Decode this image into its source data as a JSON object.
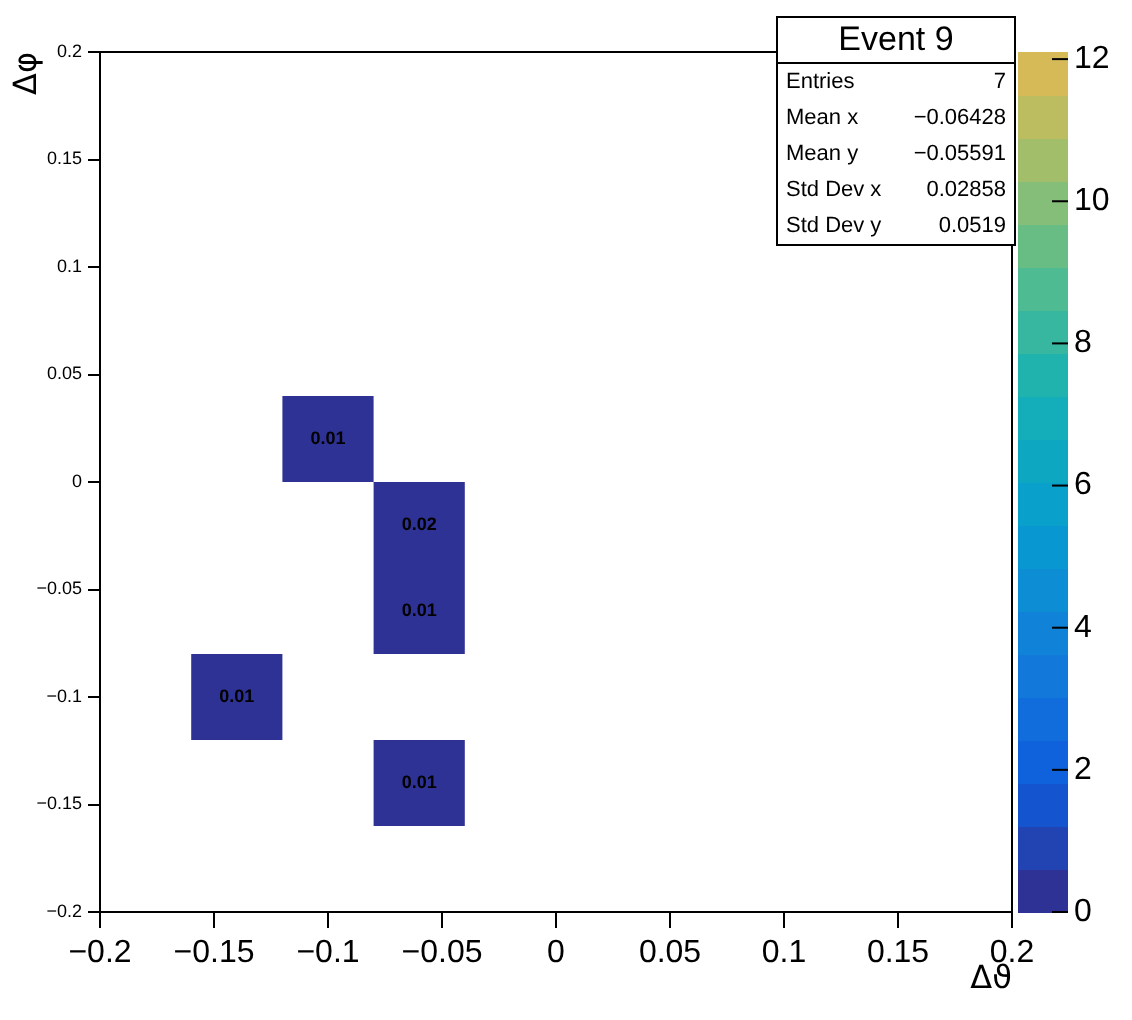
{
  "chart_data": {
    "type": "heatmap",
    "xlabel": "Δϑ",
    "ylabel": "Δφ",
    "x": [
      -0.14,
      -0.1,
      -0.06
    ],
    "y": [
      0.02,
      -0.02,
      -0.06,
      -0.1,
      -0.14
    ],
    "xlim": [
      -0.2,
      0.2
    ],
    "ylim": [
      -0.2,
      0.2
    ],
    "xticks": [
      -0.2,
      -0.15,
      -0.1,
      -0.05,
      0,
      0.05,
      0.1,
      0.15,
      0.2
    ],
    "yticks": [
      -0.2,
      -0.15,
      -0.1,
      -0.05,
      0,
      0.05,
      0.1,
      0.15,
      0.2
    ],
    "cells": [
      [
        null,
        0.01,
        null
      ],
      [
        null,
        null,
        0.02
      ],
      [
        null,
        null,
        0.01
      ],
      [
        0.01,
        null,
        null
      ],
      [
        null,
        null,
        0.01
      ]
    ],
    "data_labels": true,
    "clim": [
      0,
      12.1
    ],
    "cticks": [
      0,
      2,
      4,
      6,
      8,
      10,
      12
    ],
    "grid": false,
    "annotations": [
      "Event 9",
      "Entries",
      "7",
      "Mean x",
      "−0.06428",
      "Mean y",
      "−0.05591",
      "Std Dev x",
      "0.02858",
      "Std Dev y",
      "0.0519"
    ]
  }
}
